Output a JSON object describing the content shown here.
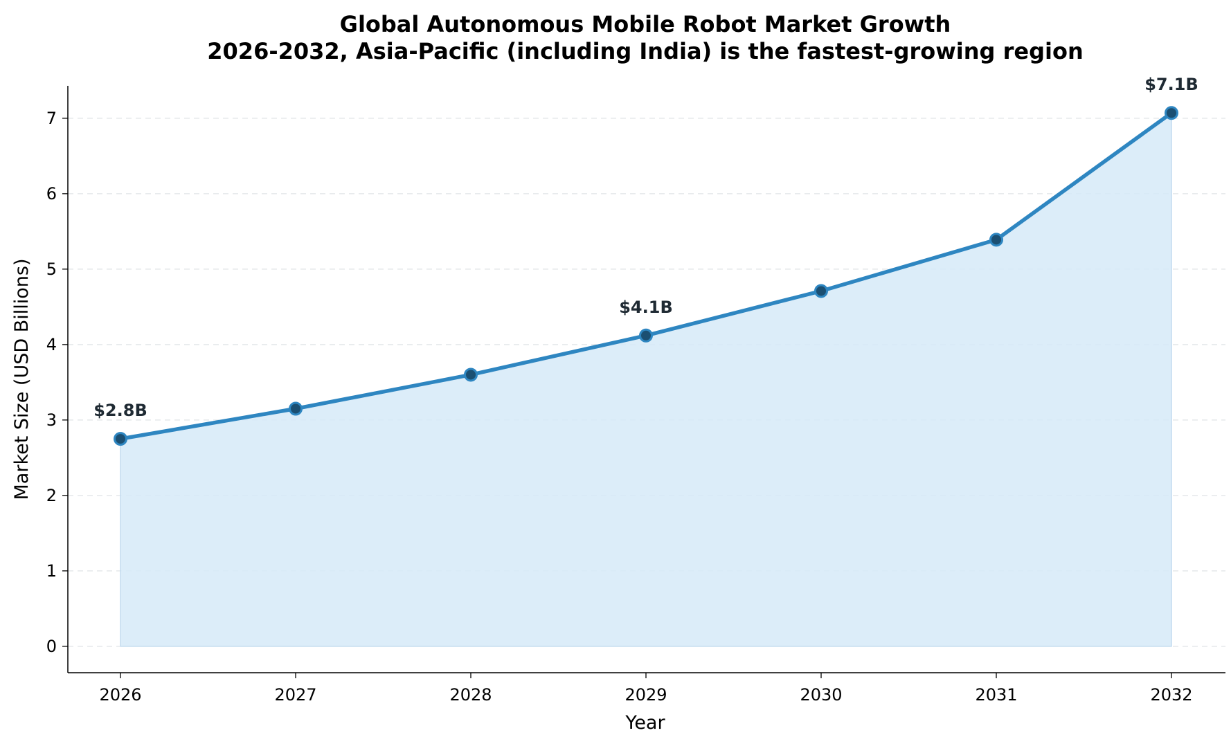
{
  "chart_data": {
    "type": "area",
    "title_lines": [
      "Global Autonomous Mobile Robot Market Growth",
      "2026-2032, Asia-Pacific (including India) is the fastest-growing region"
    ],
    "xlabel": "Year",
    "ylabel": "Market Size (USD Billions)",
    "x": [
      "2026",
      "2027",
      "2028",
      "2029",
      "2030",
      "2031",
      "2032"
    ],
    "series": [
      {
        "values": [
          2.75,
          3.15,
          3.6,
          4.12,
          4.71,
          5.39,
          7.07
        ]
      }
    ],
    "data_labels": [
      {
        "index": 0,
        "text": "$2.8B"
      },
      {
        "index": 3,
        "text": "$4.1B"
      },
      {
        "index": 6,
        "text": "$7.1B"
      }
    ],
    "yticks": [
      "0",
      "1",
      "2",
      "3",
      "4",
      "5",
      "6",
      "7"
    ],
    "ylim": [
      -0.35,
      7.43
    ],
    "grid": "y-dashed",
    "colors": {
      "line": "#2e86c1",
      "fill": "#d6eaf8",
      "marker": "#1b4f72"
    }
  }
}
